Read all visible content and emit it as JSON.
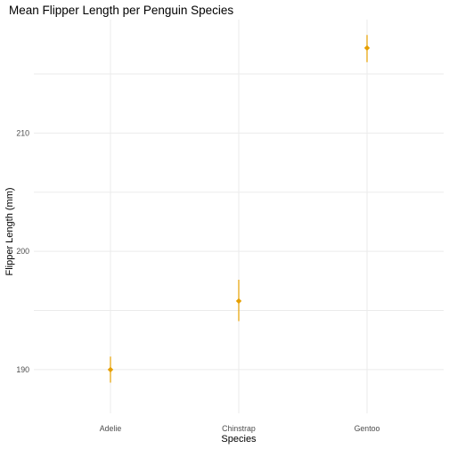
{
  "chart_data": {
    "type": "scatter",
    "title": "Mean Flipper Length per Penguin Species",
    "xlabel": "Species",
    "ylabel": "Flipper Length (mm)",
    "categories": [
      "Adelie",
      "Chinstrap",
      "Gentoo"
    ],
    "series": [
      {
        "values": [
          190.0,
          195.8,
          217.2
        ],
        "error_low": [
          188.9,
          194.1,
          216.0
        ],
        "error_high": [
          191.1,
          197.6,
          218.3
        ]
      }
    ],
    "yticks": [
      190,
      200,
      210
    ],
    "ylim": [
      186.3,
      219.6
    ],
    "grid": true,
    "point_shape": "diamond",
    "color": "#E69F00"
  }
}
